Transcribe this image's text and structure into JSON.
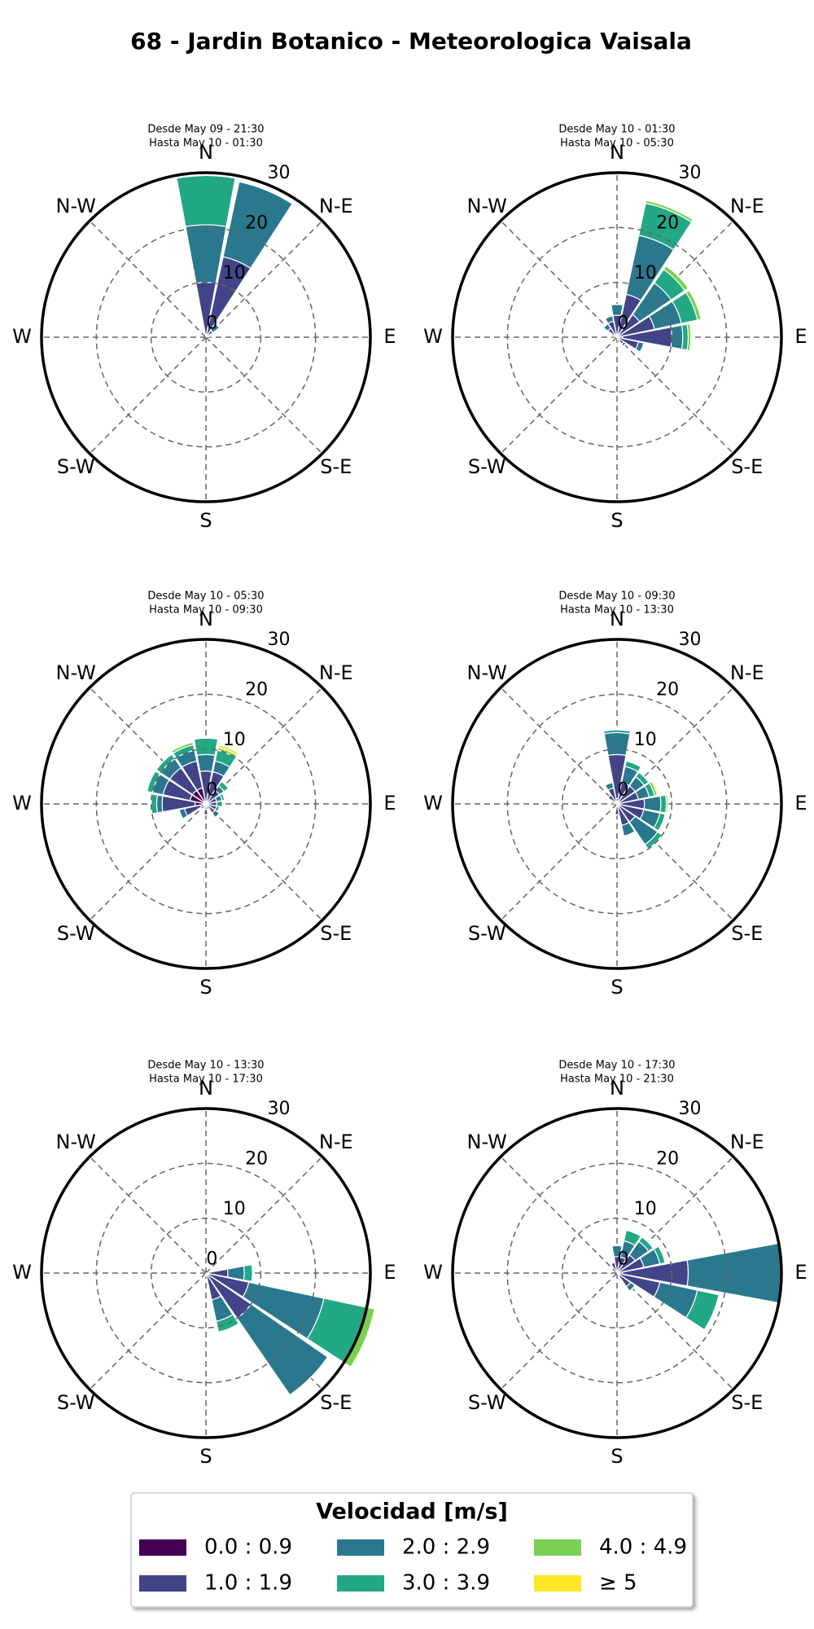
{
  "title": "68 - Jardin Botanico - Meteorologica Vaisala",
  "legend": {
    "title": "Velocidad [m/s]",
    "entries": [
      {
        "name": "0.0 : 0.9",
        "color": "#440154"
      },
      {
        "name": "1.0 : 1.9",
        "color": "#414487"
      },
      {
        "name": "2.0 : 2.9",
        "color": "#2a788e"
      },
      {
        "name": "3.0 : 3.9",
        "color": "#22a884"
      },
      {
        "name": "4.0 : 4.9",
        "color": "#7ad151"
      },
      {
        "name": "≥ 5",
        "color": "#fde725"
      }
    ]
  },
  "chart_data": [
    {
      "type": "windrose",
      "title": "Desde May 09 - 21:30",
      "subtitle": "Hasta May 10 - 01:30",
      "categories": [
        "N",
        null,
        "N-E",
        null,
        "E",
        null,
        "S-E",
        null,
        "S",
        null,
        "S-W",
        null,
        "W",
        null,
        "N-W",
        null
      ],
      "ylim": [
        0,
        30
      ],
      "yticks": [
        0,
        10,
        20,
        30
      ],
      "grid": true,
      "series": [
        {
          "values": [
            0,
            0,
            0,
            0,
            0,
            0,
            0,
            0,
            0,
            0,
            0,
            0,
            0,
            0,
            0,
            0
          ]
        },
        {
          "values": [
            10,
            15,
            1.5,
            0,
            0,
            0,
            0,
            0,
            0,
            0,
            0,
            0,
            0,
            0,
            0,
            0
          ]
        },
        {
          "values": [
            10.5,
            14,
            1.5,
            0.5,
            0,
            0,
            0,
            0,
            0,
            0,
            0,
            0,
            0,
            0,
            0,
            0
          ]
        },
        {
          "values": [
            9,
            0,
            0,
            0.3,
            0,
            0,
            0,
            0,
            0,
            0,
            0,
            0,
            0,
            0,
            0,
            0
          ]
        },
        {
          "values": [
            0,
            0,
            0,
            0,
            0,
            0,
            0,
            0,
            0,
            0,
            0,
            0,
            0,
            0,
            0,
            0
          ]
        },
        {
          "values": [
            0,
            0,
            0,
            0,
            0,
            0,
            0,
            0,
            0,
            0,
            0,
            0,
            0,
            0,
            0,
            0
          ]
        }
      ]
    },
    {
      "type": "windrose",
      "title": "Desde May 10 - 01:30",
      "subtitle": "Hasta May 10 - 05:30",
      "categories": [
        "N",
        null,
        "N-E",
        null,
        "E",
        null,
        "S-E",
        null,
        "S",
        null,
        "S-W",
        null,
        "W",
        null,
        "N-W",
        null
      ],
      "ylim": [
        0,
        30
      ],
      "yticks": [
        0,
        10,
        20,
        30
      ],
      "grid": true,
      "series": [
        {
          "values": [
            0,
            0,
            0,
            0,
            1,
            0,
            0,
            0,
            0,
            0,
            0,
            0,
            0,
            0,
            0,
            0
          ]
        },
        {
          "values": [
            4,
            8,
            5,
            7,
            9,
            4,
            1.5,
            1,
            0,
            0,
            0,
            0,
            0,
            1,
            2,
            3
          ]
        },
        {
          "values": [
            2,
            11,
            7,
            5,
            2,
            1,
            0.5,
            0,
            0,
            0,
            0,
            0,
            0,
            0,
            1,
            1
          ]
        },
        {
          "values": [
            0,
            6,
            3,
            3,
            1,
            0,
            0,
            0,
            0,
            0,
            0,
            0,
            0,
            0,
            0,
            0
          ]
        },
        {
          "values": [
            0,
            0.5,
            0.8,
            0.7,
            0.5,
            0,
            0,
            0,
            0,
            0,
            0,
            0,
            0,
            0,
            0,
            0
          ]
        },
        {
          "values": [
            0,
            0,
            0,
            0,
            0,
            0,
            0,
            0,
            0,
            0,
            0,
            0,
            0,
            0,
            0,
            0
          ]
        }
      ]
    },
    {
      "type": "windrose",
      "title": "Desde May 10 - 05:30",
      "subtitle": "Hasta May 10 - 09:30",
      "categories": [
        "N",
        null,
        "N-E",
        null,
        "E",
        null,
        "S-E",
        null,
        "S",
        null,
        "S-W",
        null,
        "W",
        null,
        "N-W",
        null
      ],
      "ylim": [
        0,
        30
      ],
      "yticks": [
        0,
        10,
        20,
        30
      ],
      "grid": true,
      "series": [
        {
          "values": [
            0,
            0,
            0,
            0,
            0,
            0,
            0,
            0,
            1,
            0,
            0,
            1,
            2,
            3,
            3,
            3
          ]
        },
        {
          "values": [
            6,
            6,
            3,
            2,
            2,
            2,
            2,
            1,
            1,
            0.5,
            0.5,
            3,
            6,
            5,
            5,
            5
          ]
        },
        {
          "values": [
            3,
            2,
            1,
            1,
            0,
            0.5,
            1,
            0,
            0,
            0,
            0,
            1,
            1,
            2,
            2,
            2
          ]
        },
        {
          "values": [
            3,
            2,
            1,
            0.5,
            1,
            0,
            0,
            0,
            0,
            0,
            0,
            0,
            1,
            1,
            1,
            1
          ]
        },
        {
          "values": [
            0,
            0.5,
            0,
            0,
            0,
            0,
            0,
            0,
            0,
            0,
            0,
            0,
            0,
            0,
            0,
            0.5
          ]
        },
        {
          "values": [
            0,
            0.5,
            0,
            0,
            0,
            0,
            0,
            0,
            0,
            0,
            0,
            0,
            0,
            0,
            0,
            0
          ]
        }
      ]
    },
    {
      "type": "windrose",
      "title": "Desde May 10 - 09:30",
      "subtitle": "Hasta May 10 - 13:30",
      "categories": [
        "N",
        null,
        "N-E",
        null,
        "E",
        null,
        "S-E",
        null,
        "S",
        null,
        "S-W",
        null,
        "W",
        null,
        "N-W",
        null
      ],
      "ylim": [
        0,
        30
      ],
      "yticks": [
        0,
        10,
        20,
        30
      ],
      "grid": true,
      "series": [
        {
          "values": [
            1,
            0,
            0,
            0,
            0,
            0,
            0,
            0,
            0,
            0,
            0,
            0,
            0,
            0,
            0,
            0
          ]
        },
        {
          "values": [
            8,
            4,
            4,
            4,
            5,
            5,
            4,
            4,
            2,
            0,
            0,
            0,
            0,
            1,
            2,
            3
          ]
        },
        {
          "values": [
            4,
            3,
            2,
            2,
            3,
            3,
            5,
            2,
            0,
            0,
            0,
            0,
            0,
            0,
            0,
            1
          ]
        },
        {
          "values": [
            0.5,
            1,
            1,
            1,
            1,
            1,
            1,
            0,
            0,
            0,
            0,
            0,
            0,
            0,
            0,
            0
          ]
        },
        {
          "values": [
            0,
            0,
            0,
            0.5,
            0.3,
            0,
            0,
            0,
            0,
            0,
            0,
            0,
            0,
            0,
            0,
            0
          ]
        },
        {
          "values": [
            0,
            0,
            0,
            0.3,
            0,
            0,
            0,
            0,
            0,
            0,
            0,
            0,
            0,
            0,
            0,
            0
          ]
        }
      ]
    },
    {
      "type": "windrose",
      "title": "Desde May 10 - 13:30",
      "subtitle": "Hasta May 10 - 17:30",
      "categories": [
        "N",
        null,
        "N-E",
        null,
        "E",
        null,
        "S-E",
        null,
        "S",
        null,
        "S-W",
        null,
        "W",
        null,
        "N-W",
        null
      ],
      "ylim": [
        0,
        30
      ],
      "yticks": [
        0,
        10,
        20,
        30
      ],
      "grid": true,
      "series": [
        {
          "values": [
            0,
            0,
            0,
            0,
            0,
            0,
            0,
            0,
            0,
            0,
            0,
            0,
            0,
            0,
            0,
            0
          ]
        },
        {
          "values": [
            0,
            0,
            0,
            0,
            4,
            8,
            10,
            5,
            0.5,
            0,
            0,
            0,
            0,
            0,
            0,
            0
          ]
        },
        {
          "values": [
            0,
            0,
            0,
            0,
            3,
            14,
            17,
            4,
            0,
            0,
            0,
            0,
            0,
            0,
            0,
            0
          ]
        },
        {
          "values": [
            0,
            0,
            0,
            0,
            1.5,
            8,
            0,
            2,
            0,
            0,
            0,
            0,
            0,
            0,
            0,
            0
          ]
        },
        {
          "values": [
            0,
            0,
            0,
            0,
            0,
            1.5,
            0,
            0,
            0,
            0,
            0,
            0,
            0,
            0,
            0,
            0
          ]
        },
        {
          "values": [
            0,
            0,
            0,
            0,
            0,
            0,
            0,
            0,
            0,
            0,
            0,
            0,
            0,
            0,
            0,
            0
          ]
        }
      ]
    },
    {
      "type": "windrose",
      "title": "Desde May 10 - 17:30",
      "subtitle": "Hasta May 10 - 21:30",
      "categories": [
        "N",
        null,
        "N-E",
        null,
        "E",
        null,
        "S-E",
        null,
        "S",
        null,
        "S-W",
        null,
        "W",
        null,
        "N-W",
        null
      ],
      "ylim": [
        0,
        30
      ],
      "yticks": [
        0,
        10,
        20,
        30
      ],
      "grid": true,
      "series": [
        {
          "values": [
            0,
            0,
            0,
            0,
            1,
            0,
            0,
            0,
            0,
            0,
            0,
            0,
            0,
            0,
            0,
            0
          ]
        },
        {
          "values": [
            3,
            3,
            4,
            5,
            12,
            8,
            3,
            0,
            0,
            0,
            0,
            0,
            0,
            0,
            0,
            2
          ]
        },
        {
          "values": [
            2,
            3,
            3,
            3,
            17,
            7,
            1,
            0,
            0,
            0,
            0,
            0,
            0,
            0,
            0,
            0
          ]
        },
        {
          "values": [
            0,
            2,
            1,
            1,
            0,
            4,
            0,
            0,
            0,
            0,
            0,
            0,
            0,
            0,
            0,
            0
          ]
        },
        {
          "values": [
            0,
            0,
            0,
            0,
            0,
            0,
            0,
            0,
            0,
            0,
            0,
            0,
            0,
            0,
            0,
            0
          ]
        },
        {
          "values": [
            0,
            0,
            0,
            0,
            0,
            0,
            0,
            0,
            0,
            0,
            0,
            0,
            0,
            0,
            0,
            0
          ]
        }
      ]
    }
  ]
}
